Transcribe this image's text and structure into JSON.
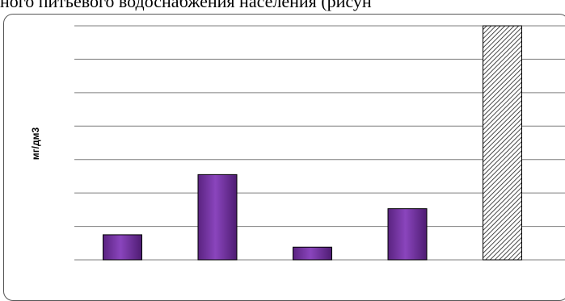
{
  "caption": "ного питьевого водоснабжения населения (рисун",
  "colors": {
    "bar_fill": "#7030a0",
    "bar_dark": "#4b1a6e",
    "bar_light": "#9a5cc9",
    "hatch": "#1a1a1a",
    "grid": "#7f7f7f"
  },
  "chart_data": {
    "type": "bar",
    "title": "",
    "xlabel": "",
    "ylabel": "мг/дм3",
    "ylim": [
      0,
      7
    ],
    "grid": true,
    "categories": [
      "",
      "",
      "",
      "",
      ""
    ],
    "values": [
      0.75,
      2.55,
      0.38,
      1.53,
      7.0
    ],
    "patterns": [
      "solid",
      "solid",
      "solid",
      "solid",
      "hatched"
    ]
  }
}
